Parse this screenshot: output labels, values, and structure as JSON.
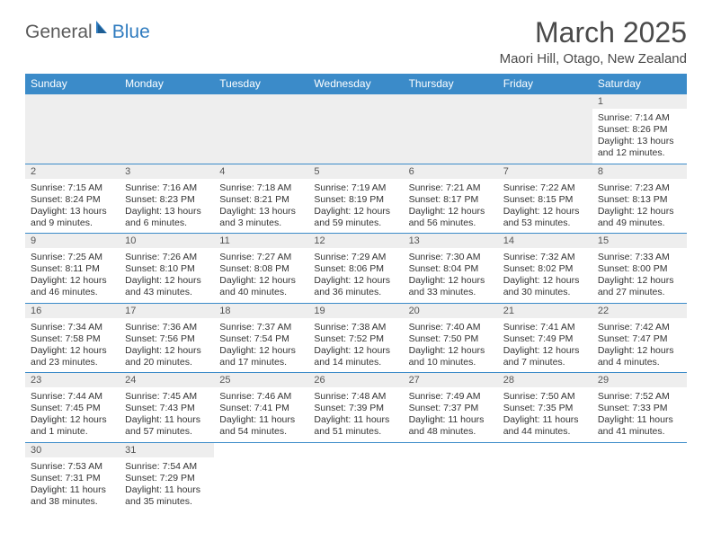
{
  "brand": {
    "name_a": "General",
    "name_b": "Blue"
  },
  "title": "March 2025",
  "location": "Maori Hill, Otago, New Zealand",
  "colors": {
    "header_bg": "#3b8bc9",
    "header_text": "#ffffff",
    "row_rule": "#3b8bc9",
    "daynum_bg": "#eeeeee",
    "text": "#333333"
  },
  "weekdays": [
    "Sunday",
    "Monday",
    "Tuesday",
    "Wednesday",
    "Thursday",
    "Friday",
    "Saturday"
  ],
  "leading_blanks": 6,
  "days": [
    {
      "n": 1,
      "sr": "7:14 AM",
      "ss": "8:26 PM",
      "dl": "13 hours and 12 minutes."
    },
    {
      "n": 2,
      "sr": "7:15 AM",
      "ss": "8:24 PM",
      "dl": "13 hours and 9 minutes."
    },
    {
      "n": 3,
      "sr": "7:16 AM",
      "ss": "8:23 PM",
      "dl": "13 hours and 6 minutes."
    },
    {
      "n": 4,
      "sr": "7:18 AM",
      "ss": "8:21 PM",
      "dl": "13 hours and 3 minutes."
    },
    {
      "n": 5,
      "sr": "7:19 AM",
      "ss": "8:19 PM",
      "dl": "12 hours and 59 minutes."
    },
    {
      "n": 6,
      "sr": "7:21 AM",
      "ss": "8:17 PM",
      "dl": "12 hours and 56 minutes."
    },
    {
      "n": 7,
      "sr": "7:22 AM",
      "ss": "8:15 PM",
      "dl": "12 hours and 53 minutes."
    },
    {
      "n": 8,
      "sr": "7:23 AM",
      "ss": "8:13 PM",
      "dl": "12 hours and 49 minutes."
    },
    {
      "n": 9,
      "sr": "7:25 AM",
      "ss": "8:11 PM",
      "dl": "12 hours and 46 minutes."
    },
    {
      "n": 10,
      "sr": "7:26 AM",
      "ss": "8:10 PM",
      "dl": "12 hours and 43 minutes."
    },
    {
      "n": 11,
      "sr": "7:27 AM",
      "ss": "8:08 PM",
      "dl": "12 hours and 40 minutes."
    },
    {
      "n": 12,
      "sr": "7:29 AM",
      "ss": "8:06 PM",
      "dl": "12 hours and 36 minutes."
    },
    {
      "n": 13,
      "sr": "7:30 AM",
      "ss": "8:04 PM",
      "dl": "12 hours and 33 minutes."
    },
    {
      "n": 14,
      "sr": "7:32 AM",
      "ss": "8:02 PM",
      "dl": "12 hours and 30 minutes."
    },
    {
      "n": 15,
      "sr": "7:33 AM",
      "ss": "8:00 PM",
      "dl": "12 hours and 27 minutes."
    },
    {
      "n": 16,
      "sr": "7:34 AM",
      "ss": "7:58 PM",
      "dl": "12 hours and 23 minutes."
    },
    {
      "n": 17,
      "sr": "7:36 AM",
      "ss": "7:56 PM",
      "dl": "12 hours and 20 minutes."
    },
    {
      "n": 18,
      "sr": "7:37 AM",
      "ss": "7:54 PM",
      "dl": "12 hours and 17 minutes."
    },
    {
      "n": 19,
      "sr": "7:38 AM",
      "ss": "7:52 PM",
      "dl": "12 hours and 14 minutes."
    },
    {
      "n": 20,
      "sr": "7:40 AM",
      "ss": "7:50 PM",
      "dl": "12 hours and 10 minutes."
    },
    {
      "n": 21,
      "sr": "7:41 AM",
      "ss": "7:49 PM",
      "dl": "12 hours and 7 minutes."
    },
    {
      "n": 22,
      "sr": "7:42 AM",
      "ss": "7:47 PM",
      "dl": "12 hours and 4 minutes."
    },
    {
      "n": 23,
      "sr": "7:44 AM",
      "ss": "7:45 PM",
      "dl": "12 hours and 1 minute."
    },
    {
      "n": 24,
      "sr": "7:45 AM",
      "ss": "7:43 PM",
      "dl": "11 hours and 57 minutes."
    },
    {
      "n": 25,
      "sr": "7:46 AM",
      "ss": "7:41 PM",
      "dl": "11 hours and 54 minutes."
    },
    {
      "n": 26,
      "sr": "7:48 AM",
      "ss": "7:39 PM",
      "dl": "11 hours and 51 minutes."
    },
    {
      "n": 27,
      "sr": "7:49 AM",
      "ss": "7:37 PM",
      "dl": "11 hours and 48 minutes."
    },
    {
      "n": 28,
      "sr": "7:50 AM",
      "ss": "7:35 PM",
      "dl": "11 hours and 44 minutes."
    },
    {
      "n": 29,
      "sr": "7:52 AM",
      "ss": "7:33 PM",
      "dl": "11 hours and 41 minutes."
    },
    {
      "n": 30,
      "sr": "7:53 AM",
      "ss": "7:31 PM",
      "dl": "11 hours and 38 minutes."
    },
    {
      "n": 31,
      "sr": "7:54 AM",
      "ss": "7:29 PM",
      "dl": "11 hours and 35 minutes."
    }
  ],
  "labels": {
    "sunrise": "Sunrise:",
    "sunset": "Sunset:",
    "daylight": "Daylight:"
  }
}
